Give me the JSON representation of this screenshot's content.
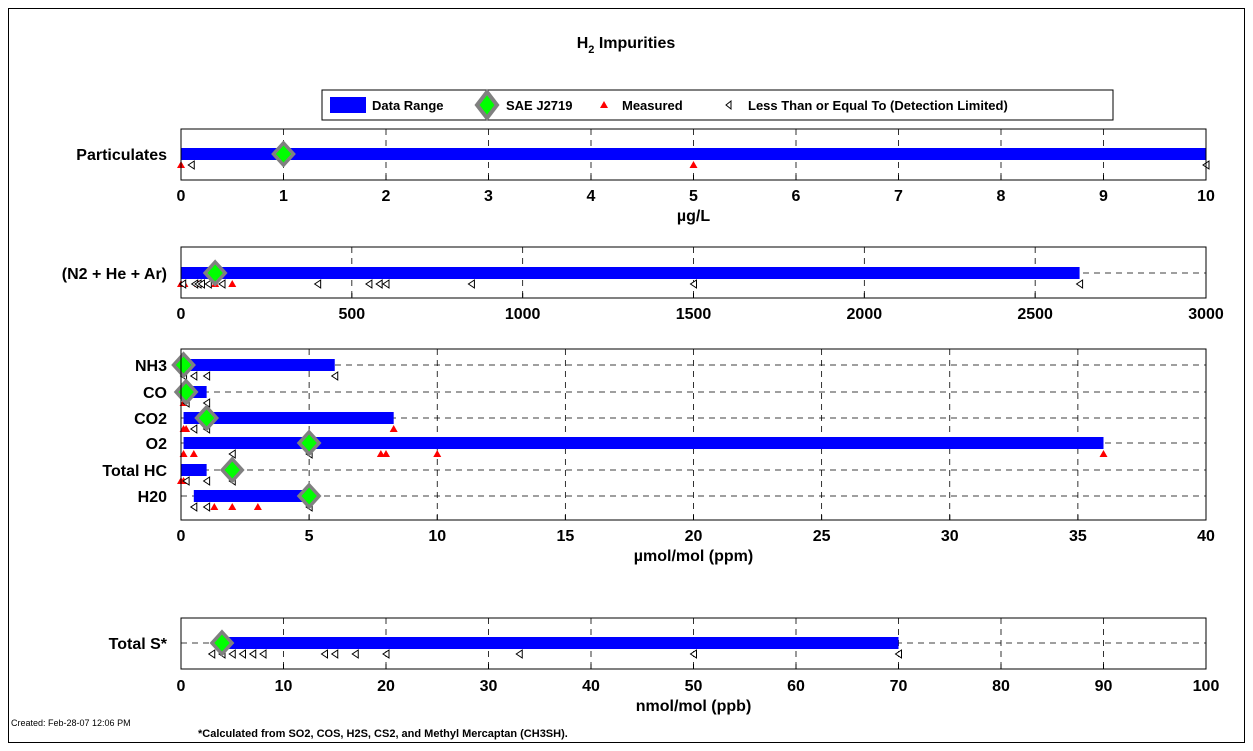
{
  "header": {
    "title_main": "H",
    "title_sub": "2",
    "title_rest": " Impurities",
    "created": "Created: Feb-28-07 12:06 PM",
    "footnote": "*Calculated from SO2, COS, H2S, CS2, and Methyl Mercaptan (CH3SH)."
  },
  "legend": {
    "data_range": "Data Range",
    "sae": "SAE J2719",
    "measured": "Measured",
    "detection": "Less Than or Equal To (Detection Limited)"
  },
  "colors": {
    "range": "#0000ff",
    "sae_fill": "#00ff00",
    "sae_border": "#808080",
    "measured": "#ff0000",
    "detection": "#000000"
  },
  "chart_data": [
    {
      "type": "range",
      "xlabel": "µg/L",
      "xlim": [
        0,
        10
      ],
      "xticks": [
        0,
        1,
        2,
        3,
        4,
        5,
        6,
        7,
        8,
        9,
        10
      ],
      "rows": [
        {
          "label": "Particulates",
          "range": [
            0,
            10
          ],
          "sae": 1,
          "measured": [
            0,
            5
          ],
          "detection": [
            0.1,
            10
          ]
        }
      ]
    },
    {
      "type": "range",
      "xlabel": "",
      "xlim": [
        0,
        3000
      ],
      "xticks": [
        0,
        500,
        1000,
        1500,
        2000,
        2500,
        3000
      ],
      "rows": [
        {
          "label": "(N2 + He + Ar)",
          "range": [
            0,
            2630
          ],
          "sae": 100,
          "measured": [
            0,
            10,
            50,
            100,
            150
          ],
          "detection": [
            5,
            40,
            50,
            60,
            80,
            120,
            400,
            550,
            580,
            600,
            850,
            1500,
            2630
          ]
        }
      ]
    },
    {
      "type": "range",
      "xlabel": "µmol/mol (ppm)",
      "xlim": [
        0,
        40
      ],
      "xticks": [
        0,
        5,
        10,
        15,
        20,
        25,
        30,
        35,
        40
      ],
      "rows": [
        {
          "label": "NH3",
          "range": [
            0,
            6
          ],
          "sae": 0.1,
          "measured": [],
          "detection": [
            0.1,
            0.5,
            1,
            6
          ]
        },
        {
          "label": "CO",
          "range": [
            0,
            1
          ],
          "sae": 0.2,
          "measured": [
            0.1
          ],
          "detection": [
            0.2,
            1
          ]
        },
        {
          "label": "CO2",
          "range": [
            0.1,
            8.3
          ],
          "sae": 1,
          "measured": [
            0.1,
            0.2,
            8.3
          ],
          "detection": [
            0.5,
            1
          ]
        },
        {
          "label": "O2",
          "range": [
            0.1,
            36
          ],
          "sae": 5,
          "measured": [
            0.1,
            0.5,
            7.8,
            8,
            10,
            36
          ],
          "detection": [
            2,
            5
          ]
        },
        {
          "label": "Total HC",
          "range": [
            0,
            1
          ],
          "sae": 2,
          "measured": [
            0,
            0.1
          ],
          "detection": [
            0.2,
            1,
            2
          ]
        },
        {
          "label": "H20",
          "range": [
            0.5,
            5
          ],
          "sae": 5,
          "measured": [
            1.3,
            2,
            3
          ],
          "detection": [
            0.5,
            1,
            5
          ]
        }
      ]
    },
    {
      "type": "range",
      "xlabel": "nmol/mol (ppb)",
      "xlim": [
        0,
        100
      ],
      "xticks": [
        0,
        10,
        20,
        30,
        40,
        50,
        60,
        70,
        80,
        90,
        100
      ],
      "rows": [
        {
          "label": "Total S*",
          "range": [
            4,
            70
          ],
          "sae": 4,
          "measured": [],
          "detection": [
            3,
            4,
            5,
            6,
            7,
            8,
            14,
            15,
            17,
            20,
            33,
            50,
            70
          ]
        }
      ]
    }
  ]
}
